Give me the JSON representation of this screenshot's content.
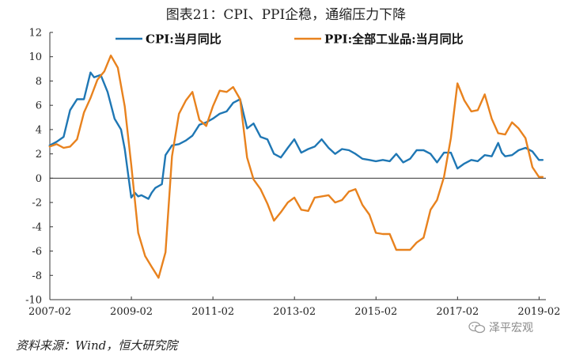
{
  "chart_data": {
    "type": "line",
    "title": "图表21：CPI、PPI企稳，通缩压力下降",
    "xlabel": "",
    "ylabel": "",
    "ylim": [
      -10,
      12
    ],
    "yticks": [
      -10,
      -8,
      -6,
      -4,
      -2,
      0,
      2,
      4,
      6,
      8,
      10,
      12
    ],
    "xlim": [
      2007.083,
      2019.25
    ],
    "xtick_labels": [
      "2007-02",
      "2009-02",
      "2011-02",
      "2013-02",
      "2015-02",
      "2017-02",
      "2019-02"
    ],
    "xtick_values": [
      2007.083,
      2009.083,
      2011.083,
      2013.083,
      2015.083,
      2017.083,
      2019.083
    ],
    "grid": false,
    "legend_position": "top",
    "series": [
      {
        "name": "CPI:当月同比",
        "color": "#1f77b4",
        "x": [
          2007.08,
          2007.25,
          2007.42,
          2007.58,
          2007.75,
          2007.92,
          2008.08,
          2008.17,
          2008.33,
          2008.5,
          2008.67,
          2008.83,
          2008.92,
          2009.08,
          2009.17,
          2009.25,
          2009.33,
          2009.5,
          2009.58,
          2009.67,
          2009.83,
          2009.92,
          2010.08,
          2010.25,
          2010.42,
          2010.58,
          2010.75,
          2010.92,
          2011.08,
          2011.25,
          2011.42,
          2011.58,
          2011.75,
          2011.92,
          2012.08,
          2012.25,
          2012.42,
          2012.58,
          2012.75,
          2012.92,
          2013.08,
          2013.25,
          2013.42,
          2013.58,
          2013.75,
          2013.92,
          2014.08,
          2014.25,
          2014.42,
          2014.58,
          2014.75,
          2014.92,
          2015.08,
          2015.25,
          2015.42,
          2015.58,
          2015.75,
          2015.92,
          2016.08,
          2016.25,
          2016.42,
          2016.58,
          2016.75,
          2016.92,
          2017.08,
          2017.25,
          2017.42,
          2017.58,
          2017.75,
          2017.92,
          2018.08,
          2018.17,
          2018.25,
          2018.42,
          2018.58,
          2018.75,
          2018.92,
          2019.08,
          2019.17
        ],
        "values": [
          2.7,
          3.0,
          3.4,
          5.6,
          6.5,
          6.5,
          8.7,
          8.3,
          8.5,
          7.1,
          4.9,
          4.0,
          2.4,
          -1.6,
          -1.2,
          -1.5,
          -1.4,
          -1.7,
          -1.2,
          -0.8,
          -0.5,
          1.9,
          2.7,
          2.8,
          3.1,
          3.5,
          4.4,
          4.6,
          4.9,
          5.3,
          5.5,
          6.2,
          6.5,
          4.1,
          4.5,
          3.4,
          3.2,
          2.0,
          1.7,
          2.5,
          3.2,
          2.1,
          2.4,
          2.6,
          3.2,
          2.5,
          2.0,
          2.4,
          2.3,
          2.0,
          1.6,
          1.5,
          1.4,
          1.5,
          1.4,
          2.0,
          1.3,
          1.6,
          2.3,
          2.3,
          2.0,
          1.3,
          2.1,
          2.1,
          0.8,
          1.2,
          1.5,
          1.4,
          1.9,
          1.8,
          2.9,
          2.1,
          1.8,
          1.9,
          2.3,
          2.5,
          2.2,
          1.5,
          1.5
        ]
      },
      {
        "name": "PPI:全部工业品:当月同比",
        "color": "#e8821e",
        "x": [
          2007.08,
          2007.25,
          2007.42,
          2007.58,
          2007.75,
          2007.92,
          2008.08,
          2008.25,
          2008.42,
          2008.58,
          2008.75,
          2008.92,
          2009.08,
          2009.25,
          2009.42,
          2009.58,
          2009.75,
          2009.92,
          2010.08,
          2010.25,
          2010.42,
          2010.58,
          2010.75,
          2010.92,
          2011.08,
          2011.25,
          2011.42,
          2011.58,
          2011.75,
          2011.92,
          2012.08,
          2012.25,
          2012.42,
          2012.58,
          2012.75,
          2012.92,
          2013.08,
          2013.25,
          2013.42,
          2013.58,
          2013.75,
          2013.92,
          2014.08,
          2014.25,
          2014.42,
          2014.58,
          2014.75,
          2014.92,
          2015.08,
          2015.25,
          2015.42,
          2015.58,
          2015.75,
          2015.92,
          2016.08,
          2016.25,
          2016.42,
          2016.58,
          2016.75,
          2016.92,
          2017.08,
          2017.25,
          2017.42,
          2017.58,
          2017.75,
          2017.92,
          2018.08,
          2018.25,
          2018.42,
          2018.58,
          2018.75,
          2018.92,
          2019.08,
          2019.17
        ],
        "values": [
          2.6,
          2.8,
          2.5,
          2.6,
          3.2,
          5.4,
          6.6,
          8.1,
          8.8,
          10.1,
          9.1,
          5.9,
          1.1,
          -4.5,
          -6.4,
          -7.3,
          -8.2,
          -6.1,
          1.8,
          5.3,
          6.4,
          7.1,
          4.8,
          4.3,
          5.9,
          7.2,
          7.1,
          7.5,
          6.5,
          1.7,
          -0.1,
          -0.9,
          -2.1,
          -3.5,
          -2.8,
          -2.0,
          -1.6,
          -2.6,
          -2.7,
          -1.6,
          -1.5,
          -1.4,
          -2.0,
          -1.8,
          -1.1,
          -0.9,
          -2.2,
          -3.0,
          -4.5,
          -4.6,
          -4.6,
          -5.9,
          -5.9,
          -5.9,
          -5.3,
          -4.9,
          -2.6,
          -1.8,
          0.1,
          3.3,
          7.8,
          6.4,
          5.5,
          5.6,
          6.9,
          4.9,
          3.7,
          3.6,
          4.6,
          4.1,
          3.3,
          0.9,
          0.1,
          0.1
        ]
      }
    ]
  },
  "footer": {
    "source": "资料来源：Wind，恒大研究院",
    "watermark": "泽平宏观"
  }
}
